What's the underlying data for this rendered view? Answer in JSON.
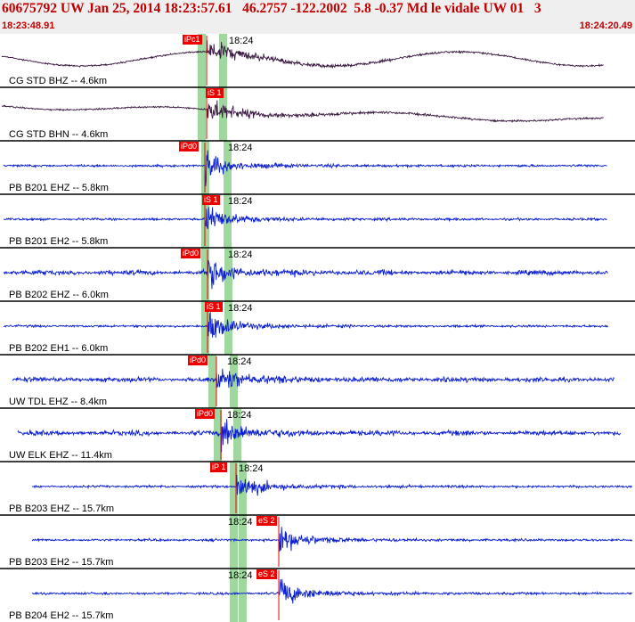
{
  "header": {
    "title": "60675792 UW Jan 25, 2014 18:23:57.61   46.2757 -122.2002  5.8 -0.37 Md le vidale UW 01   3",
    "start_time": "18:23:48.91",
    "end_time": "18:24:20.49"
  },
  "colors": {
    "header_text": "#c00000",
    "header_bg": "#efefef",
    "trace_bh": "#3a1a40",
    "trace_eh": "#0b1fd0",
    "pick_box": "#ee0000",
    "window_band": "#9fd79f"
  },
  "channels": [
    {
      "label": "CG STD BHZ -- 4.6km",
      "kind": "bh",
      "pick": "iPc1",
      "tick": "18:24"
    },
    {
      "label": "CG STD BHN -- 4.6km",
      "kind": "bh",
      "pick": "iS 1",
      "tick": ""
    },
    {
      "label": "PB B201 EHZ -- 5.8km",
      "kind": "eh",
      "pick": "iPd0",
      "tick": "18:24"
    },
    {
      "label": "PB B201 EH2 -- 5.8km",
      "kind": "eh",
      "pick": "iS 1",
      "tick": "18:24"
    },
    {
      "label": "PB B202 EHZ -- 6.0km",
      "kind": "eh",
      "pick": "iPd0",
      "tick": "18:24"
    },
    {
      "label": "PB B202 EH1 -- 6.0km",
      "kind": "eh",
      "pick": "iS 1",
      "tick": "18:24"
    },
    {
      "label": "UW TDL EHZ -- 8.4km",
      "kind": "eh",
      "pick": "iPd0",
      "tick": "18:24"
    },
    {
      "label": "UW ELK EHZ -- 11.4km",
      "kind": "eh",
      "pick": "iPd0",
      "tick": "18:24"
    },
    {
      "label": "PB B203 EHZ -- 15.7km",
      "kind": "eh",
      "pick": "iP 1",
      "tick": "18:24"
    },
    {
      "label": "PB B203 EH2 -- 15.7km",
      "kind": "eh",
      "pick": "eS 2",
      "tick": "18:24"
    },
    {
      "label": "PB B204 EH2 -- 15.7km",
      "kind": "eh",
      "pick": "eS 2",
      "tick": "18:24"
    }
  ]
}
